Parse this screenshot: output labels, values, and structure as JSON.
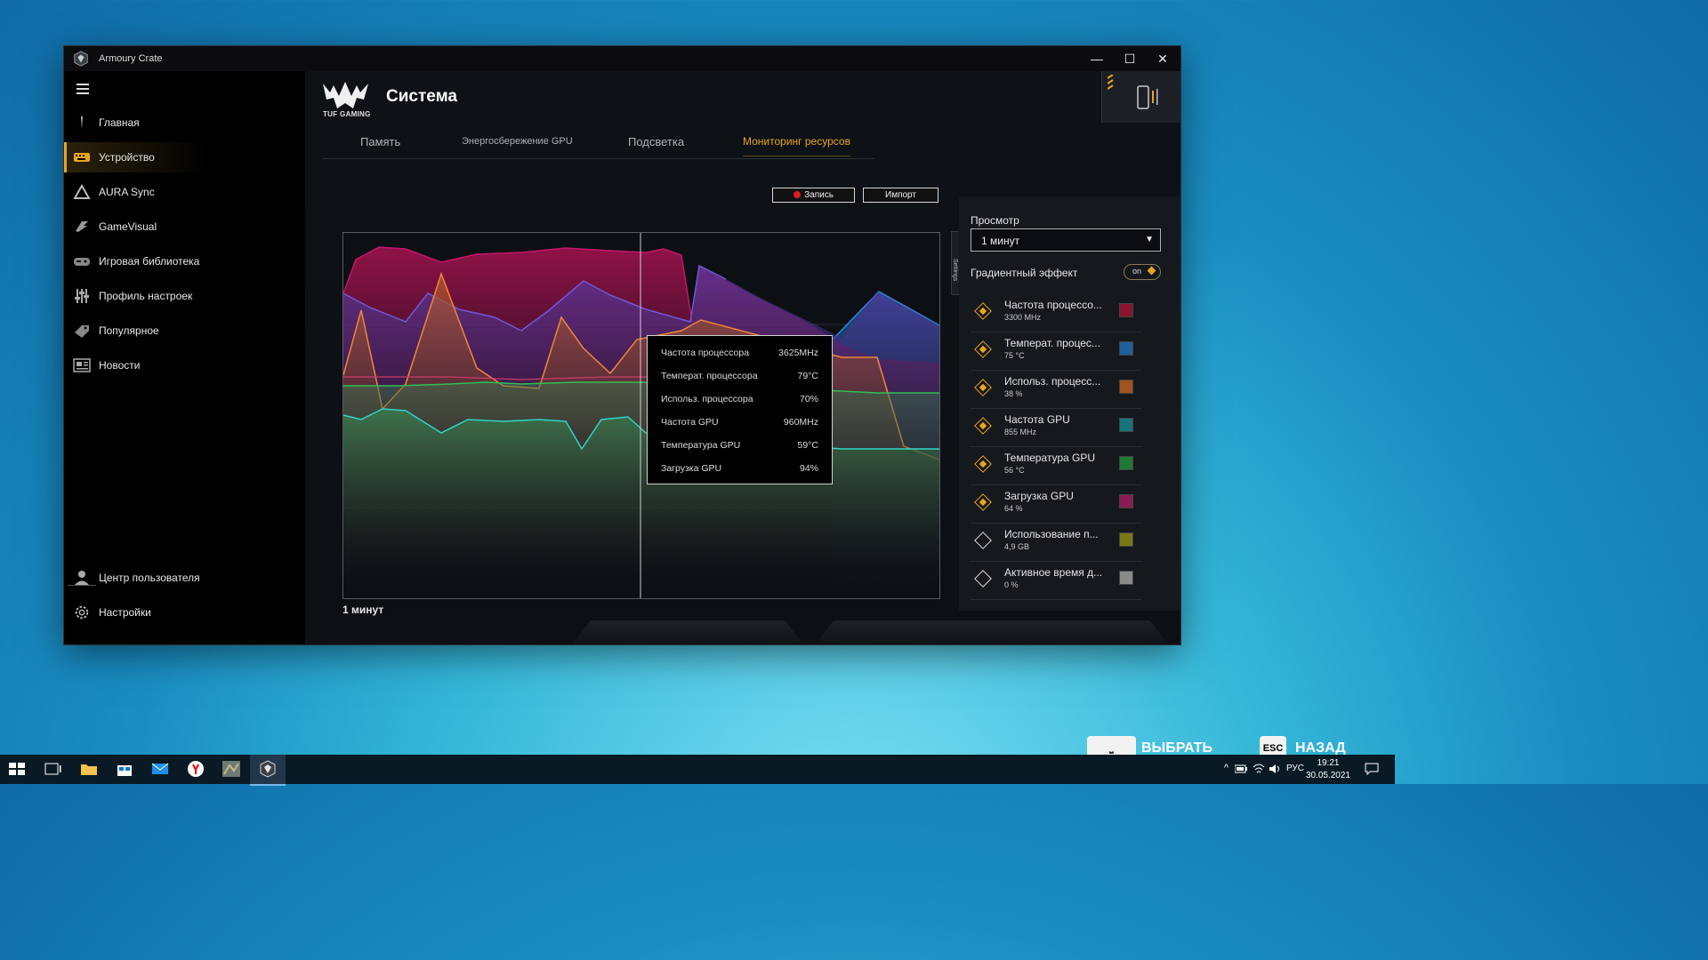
{
  "window": {
    "title": "Armoury Crate",
    "controls": {
      "minimize": "—",
      "maximize": "☐",
      "close": "✕"
    }
  },
  "sidebar": {
    "items": [
      {
        "label": "Главная",
        "icon": "home-icon"
      },
      {
        "label": "Устройство",
        "icon": "keyboard-icon",
        "active": true
      },
      {
        "label": "AURA Sync",
        "icon": "aura-icon"
      },
      {
        "label": "GameVisual",
        "icon": "gamevisual-icon"
      },
      {
        "label": "Игровая библиотека",
        "icon": "gamepad-icon"
      },
      {
        "label": "Профиль настроек",
        "icon": "sliders-icon"
      },
      {
        "label": "Популярное",
        "icon": "tag-icon"
      },
      {
        "label": "Новости",
        "icon": "news-icon"
      }
    ],
    "bottom": [
      {
        "label": "Центр пользователя",
        "icon": "user-icon"
      },
      {
        "label": "Настройки",
        "icon": "gear-icon"
      }
    ]
  },
  "header": {
    "brand": "TUF GAMING",
    "title": "Система"
  },
  "tabs": [
    {
      "label": "Память"
    },
    {
      "label": "Энергосбережение GPU"
    },
    {
      "label": "Подсветка"
    },
    {
      "label": "Мониторинг ресурсов",
      "active": true
    }
  ],
  "toolbar": {
    "record_label": "Запись",
    "import_label": "Импорт"
  },
  "chart": {
    "x_label": "1 минут",
    "tooltip": [
      {
        "name": "Частота процессора",
        "value": "3625MHz"
      },
      {
        "name": "Температ. процессора",
        "value": "79°C"
      },
      {
        "name": "Использ. процессора",
        "value": "70%"
      },
      {
        "name": "Частота GPU",
        "value": "960MHz"
      },
      {
        "name": "Температура GPU",
        "value": "59°C"
      },
      {
        "name": "Загрузка GPU",
        "value": "94%"
      }
    ]
  },
  "panel": {
    "settings_tab": "Settings",
    "view_label": "Просмотр",
    "view_value": "1  минут",
    "gradient_label": "Градиентный эффект",
    "gradient_toggle": "on",
    "metrics": [
      {
        "name": "Частота процессо...",
        "value": "3300 MHz",
        "color": "#8b1530",
        "selected": true
      },
      {
        "name": "Температ. процес...",
        "value": "75 °C",
        "color": "#1f5f9b",
        "selected": true
      },
      {
        "name": "Использ. процесс...",
        "value": "38 %",
        "color": "#a0541e",
        "selected": true
      },
      {
        "name": "Частота GPU",
        "value": "855 MHz",
        "color": "#16747a",
        "selected": true
      },
      {
        "name": "Температура GPU",
        "value": "56 °C",
        "color": "#1e7a35",
        "selected": true
      },
      {
        "name": "Загрузка GPU",
        "value": "64 %",
        "color": "#8a1c55",
        "selected": true
      },
      {
        "name": "Использование п...",
        "value": "4,9 GB",
        "color": "#7a7a15",
        "selected": false
      },
      {
        "name": "Активное время д...",
        "value": "0 %",
        "color": "#8a8a8a",
        "selected": false
      }
    ]
  },
  "hints": [
    {
      "key": "",
      "label": "ВЫБРАТЬ"
    },
    {
      "key": "ESC",
      "label": "НАЗАД"
    }
  ],
  "taskbar": {
    "lang": "РУС",
    "time": "19:21",
    "date": "30.05.2021"
  }
}
